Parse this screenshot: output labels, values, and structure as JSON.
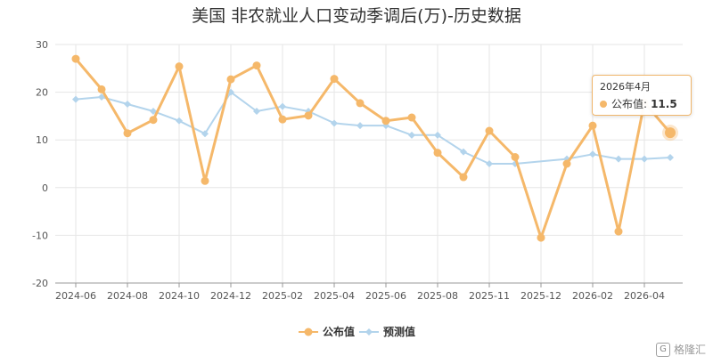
{
  "chart_data": {
    "type": "line",
    "title": "美国 非农就业人口变动季调后(万)-历史数据",
    "x": [
      "2024-06",
      "2024-07",
      "2024-08",
      "2024-09",
      "2024-10",
      "2024-11",
      "2024-12",
      "2025-01",
      "2025-02",
      "2025-03",
      "2025-04",
      "2025-05",
      "2025-06",
      "2025-07",
      "2025-08",
      "2025-09",
      "2025-11",
      "2025-11b",
      "2025-12",
      "2026-01",
      "2026-02",
      "2026-03",
      "2026-04",
      "2026-04b"
    ],
    "xticks": [
      "2024-06",
      "2024-08",
      "2024-10",
      "2024-12",
      "2025-02",
      "2025-04",
      "2025-06",
      "2025-08",
      "2025-11",
      "2025-12",
      "2026-02",
      "2026-04"
    ],
    "ylim": [
      -20,
      30
    ],
    "yticks": [
      -20,
      -10,
      0,
      10,
      20,
      30
    ],
    "grid": true,
    "legend_position": "bottom-center",
    "series": [
      {
        "name": "公布值",
        "color": "#f5b86a",
        "values": [
          27,
          20.6,
          11.4,
          14.2,
          25.4,
          1.4,
          22.7,
          25.6,
          14.3,
          15.1,
          22.8,
          17.7,
          14.0,
          14.7,
          7.3,
          2.2,
          11.9,
          6.4,
          -10.5,
          5.0,
          13.0,
          -9.2,
          17.8,
          11.5
        ]
      },
      {
        "name": "预测值",
        "color": "#b3d4ec",
        "values": [
          18.5,
          19.0,
          17.5,
          16.0,
          14.0,
          11.3,
          20.0,
          16.0,
          17.0,
          16.0,
          13.5,
          13.0,
          13.0,
          11.0,
          11.0,
          7.5,
          5.0,
          5.0,
          null,
          6.0,
          7.0,
          6.0,
          6.0,
          6.3
        ]
      }
    ]
  },
  "tooltip": {
    "title": "2026年4月",
    "series_name": "公布值",
    "value": "11.5"
  },
  "watermark": {
    "logo": "G",
    "text": "格隆汇"
  }
}
